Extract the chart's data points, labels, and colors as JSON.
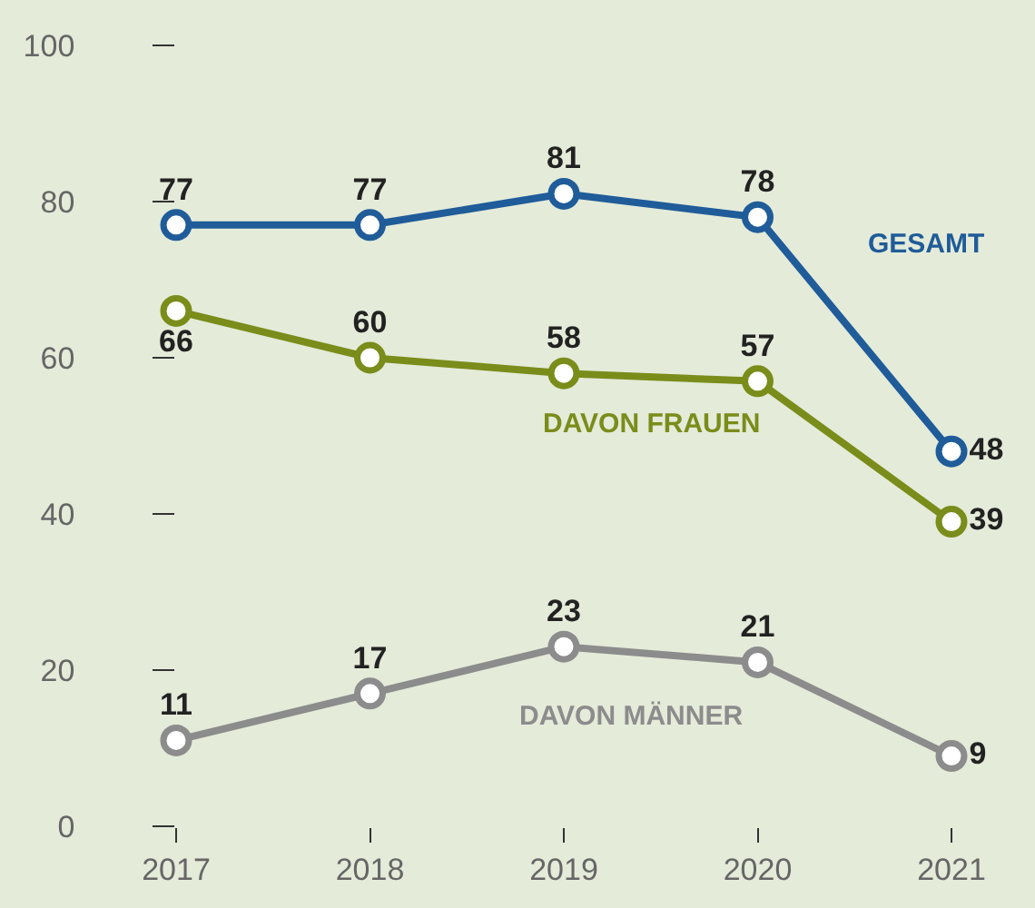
{
  "chart_data": {
    "type": "line",
    "x": [
      2017,
      2018,
      2019,
      2020,
      2021
    ],
    "series": [
      {
        "name": "GESAMT",
        "color": "#1f5c99",
        "values": [
          77,
          77,
          81,
          78,
          48
        ]
      },
      {
        "name": "DAVON FRAUEN",
        "color": "#7a8c1a",
        "values": [
          66,
          60,
          58,
          57,
          39
        ]
      },
      {
        "name": "DAVON MÄNNER",
        "color": "#8c8c8c",
        "values": [
          11,
          17,
          23,
          21,
          9
        ]
      }
    ],
    "xlim": [
      2017,
      2021
    ],
    "xticks": [
      2017,
      2018,
      2019,
      2020,
      2021
    ],
    "ylim": [
      0,
      100
    ],
    "yticks": [
      0,
      20,
      40,
      60,
      80,
      100
    ],
    "data_labels": true,
    "grid": false,
    "legend": false,
    "marker": "circle",
    "line_style": "solid"
  }
}
